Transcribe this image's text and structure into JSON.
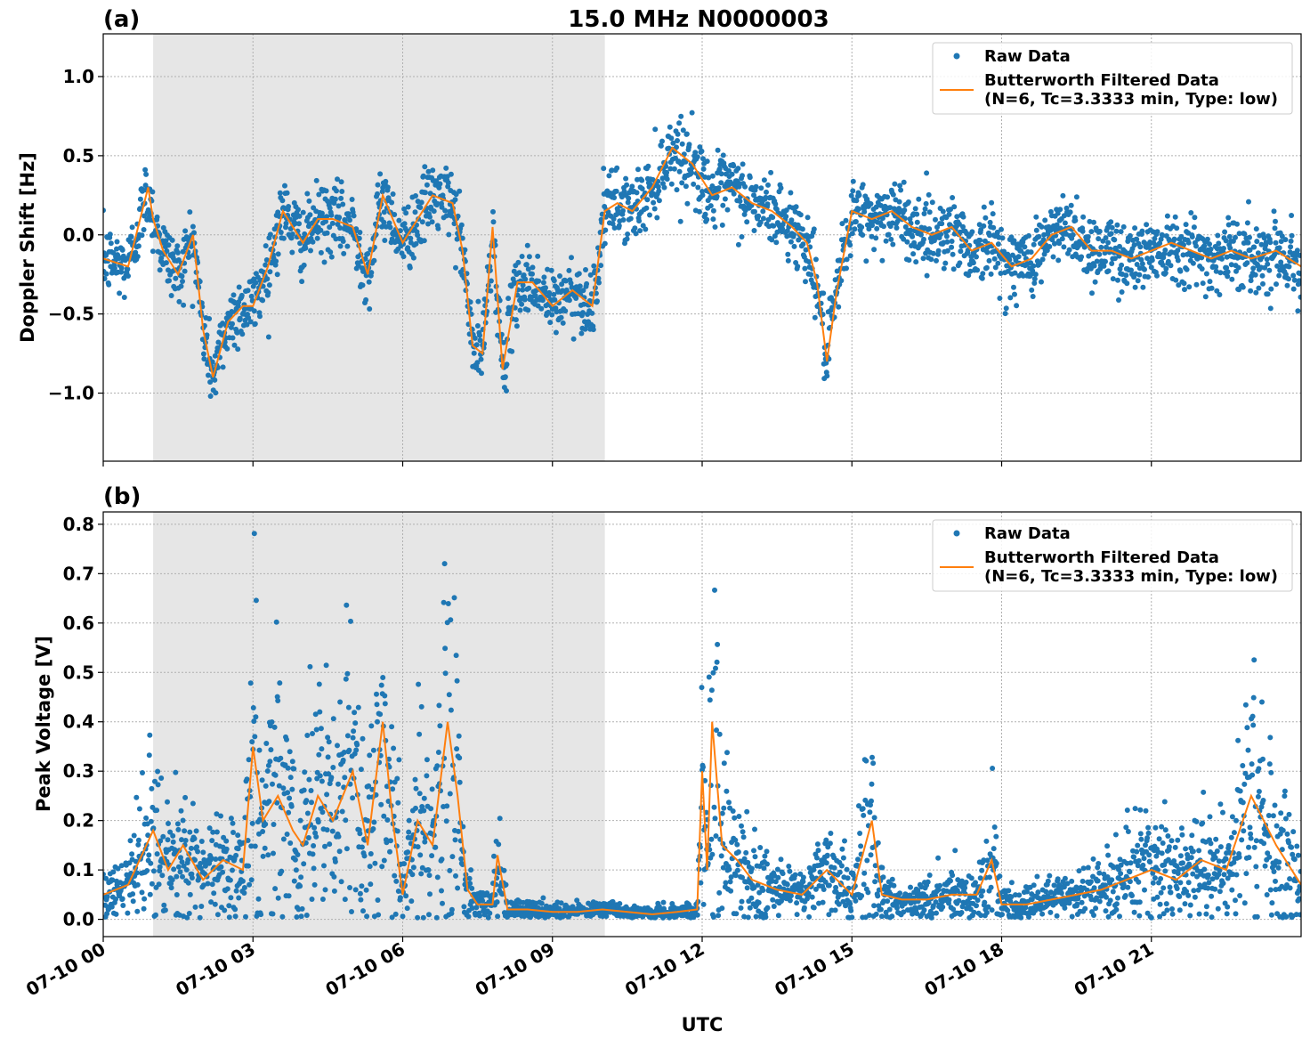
{
  "chart_data": [
    {
      "type": "scatter",
      "panel_label": "(a)",
      "title": "15.0 MHz N0000003",
      "ylabel": "Doppler Shift [Hz]",
      "ylim": [
        -1.43,
        1.27
      ],
      "yticks": [
        {
          "v": 1.0,
          "label": "1.0"
        },
        {
          "v": 0.5,
          "label": "0.5"
        },
        {
          "v": 0.0,
          "label": "0.0"
        },
        {
          "v": -0.5,
          "label": "−0.5"
        },
        {
          "v": -1.0,
          "label": "−1.0"
        }
      ],
      "shaded_interval_hours": [
        1.0,
        10.05
      ],
      "legend": {
        "position": "top-right",
        "raw": "Raw Data",
        "filtered_line1": "Butterworth Filtered Data",
        "filtered_line2": "(N=6, Tc=3.3333 min, Type: low)"
      },
      "series": [
        {
          "name": "Butterworth Filtered Data",
          "color": "#ff7f0e",
          "x_hours": [
            0,
            0.5,
            0.9,
            1.0,
            1.2,
            1.5,
            1.8,
            2.0,
            2.2,
            2.5,
            2.8,
            3.0,
            3.3,
            3.6,
            4.0,
            4.3,
            4.6,
            5.0,
            5.3,
            5.6,
            6.0,
            6.3,
            6.6,
            7.0,
            7.2,
            7.4,
            7.6,
            7.8,
            8.0,
            8.3,
            8.6,
            9.0,
            9.4,
            9.8,
            10.05,
            10.3,
            10.6,
            11.0,
            11.4,
            11.8,
            12.2,
            12.6,
            13.0,
            13.4,
            13.8,
            14.1,
            14.3,
            14.5,
            14.7,
            15.0,
            15.4,
            15.8,
            16.2,
            16.6,
            17.0,
            17.4,
            17.8,
            18.2,
            18.6,
            19.0,
            19.4,
            19.8,
            20.2,
            20.6,
            21.0,
            21.4,
            21.8,
            22.2,
            22.6,
            23.0,
            23.5,
            24.0
          ],
          "y": [
            -0.15,
            -0.2,
            0.3,
            0.1,
            -0.1,
            -0.25,
            0.0,
            -0.6,
            -0.9,
            -0.55,
            -0.45,
            -0.45,
            -0.2,
            0.15,
            -0.05,
            0.1,
            0.1,
            0.05,
            -0.25,
            0.25,
            -0.05,
            0.1,
            0.25,
            0.2,
            -0.1,
            -0.7,
            -0.75,
            0.05,
            -0.85,
            -0.3,
            -0.3,
            -0.45,
            -0.35,
            -0.45,
            0.15,
            0.2,
            0.15,
            0.3,
            0.55,
            0.45,
            0.25,
            0.3,
            0.2,
            0.15,
            0.05,
            -0.05,
            -0.3,
            -0.8,
            -0.35,
            0.15,
            0.1,
            0.15,
            0.05,
            0.0,
            0.05,
            -0.1,
            -0.05,
            -0.2,
            -0.15,
            0.0,
            0.05,
            -0.1,
            -0.1,
            -0.15,
            -0.1,
            -0.05,
            -0.1,
            -0.15,
            -0.1,
            -0.15,
            -0.1,
            -0.2
          ]
        }
      ]
    },
    {
      "type": "scatter",
      "panel_label": "(b)",
      "xlabel": "UTC",
      "ylabel": "Peak Voltage [V]",
      "ylim": [
        -0.035,
        0.825
      ],
      "yticks": [
        {
          "v": 0.8,
          "label": "0.8"
        },
        {
          "v": 0.7,
          "label": "0.7"
        },
        {
          "v": 0.6,
          "label": "0.6"
        },
        {
          "v": 0.5,
          "label": "0.5"
        },
        {
          "v": 0.4,
          "label": "0.4"
        },
        {
          "v": 0.3,
          "label": "0.3"
        },
        {
          "v": 0.2,
          "label": "0.2"
        },
        {
          "v": 0.1,
          "label": "0.1"
        },
        {
          "v": 0.0,
          "label": "0.0"
        }
      ],
      "xticks": [
        {
          "h": 0,
          "label": "07-10 00"
        },
        {
          "h": 3,
          "label": "07-10 03"
        },
        {
          "h": 6,
          "label": "07-10 06"
        },
        {
          "h": 9,
          "label": "07-10 09"
        },
        {
          "h": 12,
          "label": "07-10 12"
        },
        {
          "h": 15,
          "label": "07-10 15"
        },
        {
          "h": 18,
          "label": "07-10 18"
        },
        {
          "h": 21,
          "label": "07-10 21"
        }
      ],
      "shaded_interval_hours": [
        1.0,
        10.05
      ],
      "legend": {
        "position": "top-right",
        "raw": "Raw Data",
        "filtered_line1": "Butterworth Filtered Data",
        "filtered_line2": "(N=6, Tc=3.3333 min, Type: low)"
      },
      "series": [
        {
          "name": "Butterworth Filtered Data",
          "color": "#ff7f0e",
          "x_hours": [
            0,
            0.5,
            1.0,
            1.3,
            1.6,
            2.0,
            2.4,
            2.8,
            3.0,
            3.2,
            3.5,
            3.8,
            4.0,
            4.3,
            4.6,
            5.0,
            5.3,
            5.6,
            5.8,
            6.0,
            6.3,
            6.6,
            6.9,
            7.1,
            7.3,
            7.5,
            7.8,
            7.9,
            8.1,
            8.5,
            9.0,
            9.5,
            10.0,
            10.5,
            11.0,
            11.5,
            11.9,
            12.0,
            12.1,
            12.2,
            12.4,
            12.7,
            13.0,
            13.5,
            14.0,
            14.5,
            15.0,
            15.4,
            15.6,
            16.0,
            16.5,
            17.0,
            17.5,
            17.8,
            18.0,
            18.5,
            19.0,
            19.5,
            20.0,
            20.5,
            21.0,
            21.5,
            22.0,
            22.5,
            23.0,
            23.5,
            24.0
          ],
          "y": [
            0.05,
            0.07,
            0.18,
            0.1,
            0.15,
            0.08,
            0.12,
            0.1,
            0.35,
            0.2,
            0.25,
            0.18,
            0.15,
            0.25,
            0.2,
            0.3,
            0.15,
            0.4,
            0.2,
            0.05,
            0.2,
            0.15,
            0.4,
            0.25,
            0.06,
            0.03,
            0.03,
            0.13,
            0.02,
            0.02,
            0.015,
            0.015,
            0.02,
            0.015,
            0.01,
            0.015,
            0.02,
            0.3,
            0.1,
            0.4,
            0.15,
            0.12,
            0.08,
            0.06,
            0.05,
            0.1,
            0.05,
            0.2,
            0.05,
            0.04,
            0.04,
            0.05,
            0.05,
            0.12,
            0.03,
            0.03,
            0.04,
            0.05,
            0.06,
            0.08,
            0.1,
            0.08,
            0.12,
            0.1,
            0.25,
            0.15,
            0.07
          ]
        }
      ]
    }
  ]
}
